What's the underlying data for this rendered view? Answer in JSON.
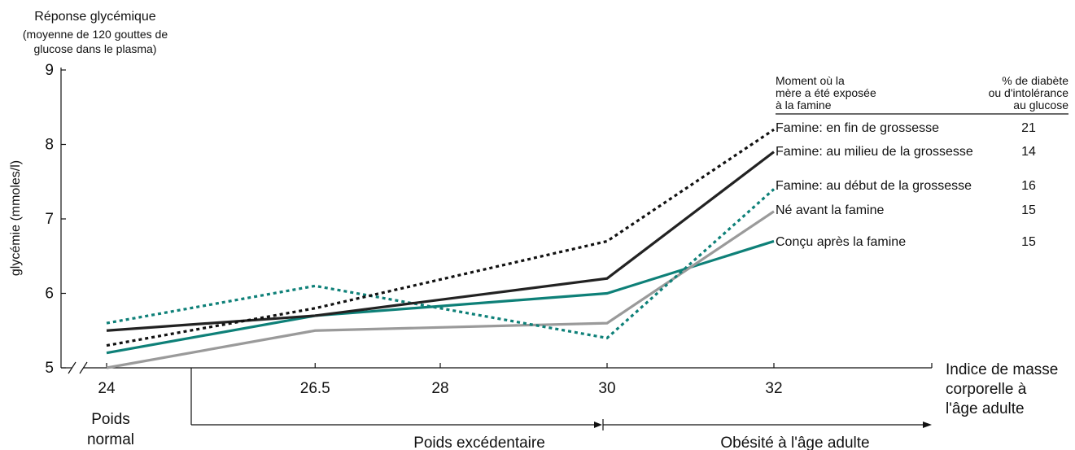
{
  "chart_data": {
    "type": "line",
    "title": "Réponse glycémique",
    "subtitle_lines": [
      "(moyenne de 120 gouttes de",
      "glucose dans le plasma)"
    ],
    "ylabel": "glycémie (mmoles/l)",
    "xlabel_lines": [
      "Indice de masse",
      "corporelle à",
      "l'âge adulte"
    ],
    "ylim": [
      5,
      9
    ],
    "yticks": [
      "5",
      "6",
      "7",
      "8",
      "9"
    ],
    "xticks": [
      "24",
      "26.5",
      "28",
      "30",
      "32"
    ],
    "x": [
      24,
      26.5,
      30,
      32
    ],
    "legend_header": {
      "left": [
        "Moment où la",
        "mère a été exposée",
        "à la famine"
      ],
      "right": [
        "% de diabète",
        "ou d'intolérance",
        "au glucose"
      ]
    },
    "series": [
      {
        "name": "Famine: en fin de grossesse",
        "percent": "21",
        "color": "#111111",
        "style": "dotted",
        "values": [
          5.3,
          5.8,
          6.7,
          8.2
        ]
      },
      {
        "name": "Famine: au milieu de la grossesse",
        "percent": "14",
        "color": "#222222",
        "style": "solid",
        "values": [
          5.5,
          5.7,
          6.2,
          7.9
        ]
      },
      {
        "name": "Famine: au début de la grossesse",
        "percent": "16",
        "color": "#0e8078",
        "style": "dotted",
        "values": [
          5.6,
          6.1,
          5.4,
          7.4
        ]
      },
      {
        "name": "Né avant la famine",
        "percent": "15",
        "color": "#9a9a9a",
        "style": "solid",
        "values": [
          5.0,
          5.5,
          5.6,
          7.1
        ]
      },
      {
        "name": "Conçu après la famine",
        "percent": "15",
        "color": "#0e8078",
        "style": "solid",
        "values": [
          5.2,
          5.7,
          6.0,
          6.7
        ]
      }
    ],
    "categories_bands": [
      {
        "label_lines": [
          "Poids",
          "normal"
        ],
        "from": 24,
        "to": 24
      },
      {
        "label_lines": [
          "Poids excédentaire"
        ],
        "from": 25,
        "to": 30
      },
      {
        "label_lines": [
          "Obésité à l'âge adulte"
        ],
        "from": 30,
        "to": 34.3
      }
    ]
  }
}
